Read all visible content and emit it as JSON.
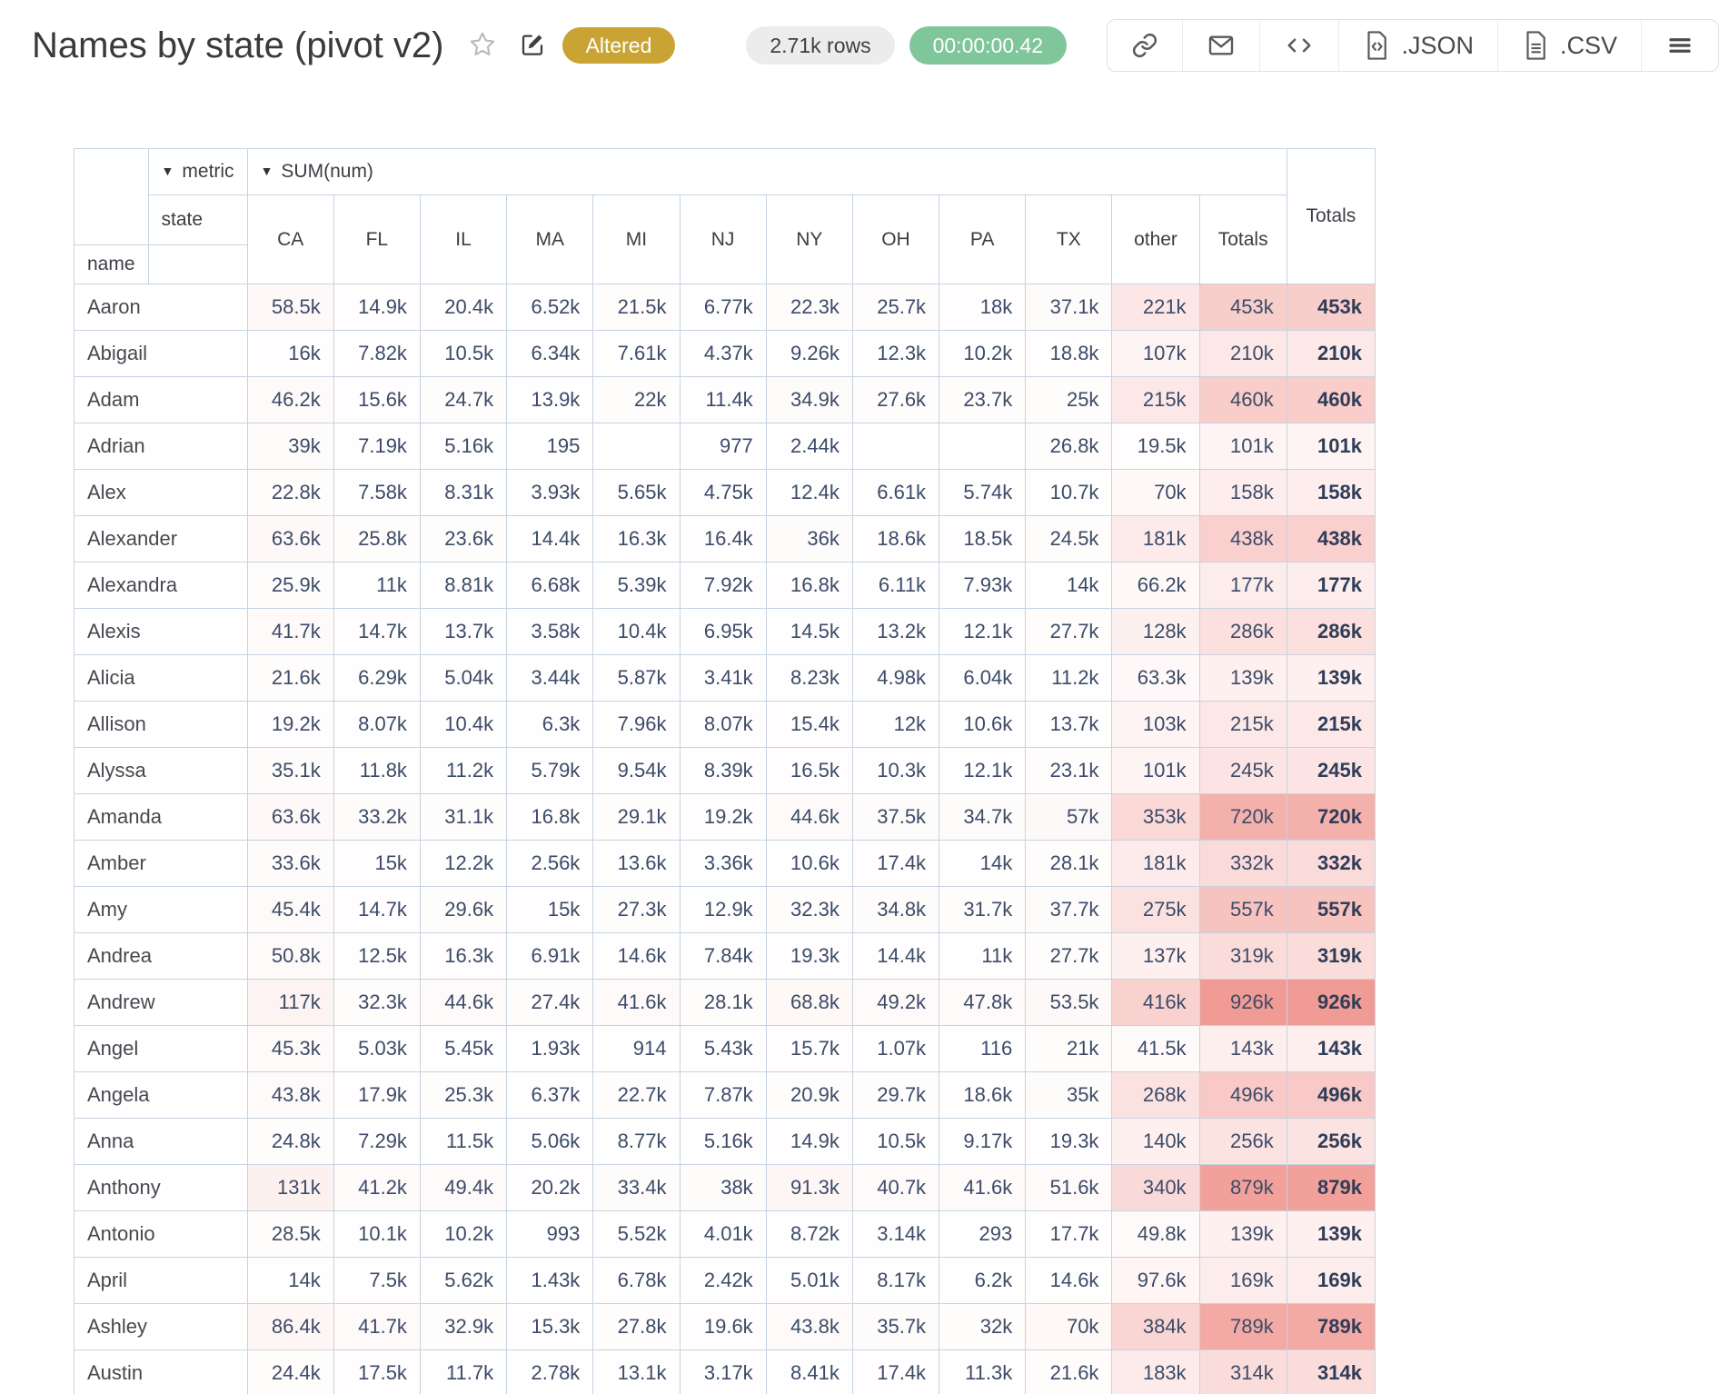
{
  "toolbar": {
    "title": "Names by state (pivot v2)",
    "altered_badge": {
      "label": "Altered",
      "bg": "#c9a434"
    },
    "rows_badge": {
      "label": "2.71k rows",
      "bg": "#ececec"
    },
    "timer_badge": {
      "label": "00:00:00.42",
      "bg": "#80c69b"
    },
    "json_button_label": ".JSON",
    "csv_button_label": ".CSV"
  },
  "pivot": {
    "dropdown_arrow": "▼",
    "metric_label": "metric",
    "sum_label": "SUM(num)",
    "state_label": "state",
    "name_label": "name",
    "inner_totals_label": "Totals",
    "grand_totals_label": "Totals",
    "columns": [
      "CA",
      "FL",
      "IL",
      "MA",
      "MI",
      "NJ",
      "NY",
      "OH",
      "PA",
      "TX",
      "other",
      "Totals"
    ],
    "rows": [
      {
        "name": "Aaron",
        "values": [
          "58.5k",
          "14.9k",
          "20.4k",
          "6.52k",
          "21.5k",
          "6.77k",
          "22.3k",
          "25.7k",
          "18k",
          "37.1k",
          "221k",
          "453k"
        ],
        "total": "453k"
      },
      {
        "name": "Abigail",
        "values": [
          "16k",
          "7.82k",
          "10.5k",
          "6.34k",
          "7.61k",
          "4.37k",
          "9.26k",
          "12.3k",
          "10.2k",
          "18.8k",
          "107k",
          "210k"
        ],
        "total": "210k"
      },
      {
        "name": "Adam",
        "values": [
          "46.2k",
          "15.6k",
          "24.7k",
          "13.9k",
          "22k",
          "11.4k",
          "34.9k",
          "27.6k",
          "23.7k",
          "25k",
          "215k",
          "460k"
        ],
        "total": "460k"
      },
      {
        "name": "Adrian",
        "values": [
          "39k",
          "7.19k",
          "5.16k",
          "195",
          "",
          "977",
          "2.44k",
          "",
          "",
          "26.8k",
          "19.5k",
          "101k"
        ],
        "total": "101k"
      },
      {
        "name": "Alex",
        "values": [
          "22.8k",
          "7.58k",
          "8.31k",
          "3.93k",
          "5.65k",
          "4.75k",
          "12.4k",
          "6.61k",
          "5.74k",
          "10.7k",
          "70k",
          "158k"
        ],
        "total": "158k"
      },
      {
        "name": "Alexander",
        "values": [
          "63.6k",
          "25.8k",
          "23.6k",
          "14.4k",
          "16.3k",
          "16.4k",
          "36k",
          "18.6k",
          "18.5k",
          "24.5k",
          "181k",
          "438k"
        ],
        "total": "438k"
      },
      {
        "name": "Alexandra",
        "values": [
          "25.9k",
          "11k",
          "8.81k",
          "6.68k",
          "5.39k",
          "7.92k",
          "16.8k",
          "6.11k",
          "7.93k",
          "14k",
          "66.2k",
          "177k"
        ],
        "total": "177k"
      },
      {
        "name": "Alexis",
        "values": [
          "41.7k",
          "14.7k",
          "13.7k",
          "3.58k",
          "10.4k",
          "6.95k",
          "14.5k",
          "13.2k",
          "12.1k",
          "27.7k",
          "128k",
          "286k"
        ],
        "total": "286k"
      },
      {
        "name": "Alicia",
        "values": [
          "21.6k",
          "6.29k",
          "5.04k",
          "3.44k",
          "5.87k",
          "3.41k",
          "8.23k",
          "4.98k",
          "6.04k",
          "11.2k",
          "63.3k",
          "139k"
        ],
        "total": "139k"
      },
      {
        "name": "Allison",
        "values": [
          "19.2k",
          "8.07k",
          "10.4k",
          "6.3k",
          "7.96k",
          "8.07k",
          "15.4k",
          "12k",
          "10.6k",
          "13.7k",
          "103k",
          "215k"
        ],
        "total": "215k"
      },
      {
        "name": "Alyssa",
        "values": [
          "35.1k",
          "11.8k",
          "11.2k",
          "5.79k",
          "9.54k",
          "8.39k",
          "16.5k",
          "10.3k",
          "12.1k",
          "23.1k",
          "101k",
          "245k"
        ],
        "total": "245k"
      },
      {
        "name": "Amanda",
        "values": [
          "63.6k",
          "33.2k",
          "31.1k",
          "16.8k",
          "29.1k",
          "19.2k",
          "44.6k",
          "37.5k",
          "34.7k",
          "57k",
          "353k",
          "720k"
        ],
        "total": "720k"
      },
      {
        "name": "Amber",
        "values": [
          "33.6k",
          "15k",
          "12.2k",
          "2.56k",
          "13.6k",
          "3.36k",
          "10.6k",
          "17.4k",
          "14k",
          "28.1k",
          "181k",
          "332k"
        ],
        "total": "332k"
      },
      {
        "name": "Amy",
        "values": [
          "45.4k",
          "14.7k",
          "29.6k",
          "15k",
          "27.3k",
          "12.9k",
          "32.3k",
          "34.8k",
          "31.7k",
          "37.7k",
          "275k",
          "557k"
        ],
        "total": "557k"
      },
      {
        "name": "Andrea",
        "values": [
          "50.8k",
          "12.5k",
          "16.3k",
          "6.91k",
          "14.6k",
          "7.84k",
          "19.3k",
          "14.4k",
          "11k",
          "27.7k",
          "137k",
          "319k"
        ],
        "total": "319k"
      },
      {
        "name": "Andrew",
        "values": [
          "117k",
          "32.3k",
          "44.6k",
          "27.4k",
          "41.6k",
          "28.1k",
          "68.8k",
          "49.2k",
          "47.8k",
          "53.5k",
          "416k",
          "926k"
        ],
        "total": "926k"
      },
      {
        "name": "Angel",
        "values": [
          "45.3k",
          "5.03k",
          "5.45k",
          "1.93k",
          "914",
          "5.43k",
          "15.7k",
          "1.07k",
          "116",
          "21k",
          "41.5k",
          "143k"
        ],
        "total": "143k"
      },
      {
        "name": "Angela",
        "values": [
          "43.8k",
          "17.9k",
          "25.3k",
          "6.37k",
          "22.7k",
          "7.87k",
          "20.9k",
          "29.7k",
          "18.6k",
          "35k",
          "268k",
          "496k"
        ],
        "total": "496k"
      },
      {
        "name": "Anna",
        "values": [
          "24.8k",
          "7.29k",
          "11.5k",
          "5.06k",
          "8.77k",
          "5.16k",
          "14.9k",
          "10.5k",
          "9.17k",
          "19.3k",
          "140k",
          "256k"
        ],
        "total": "256k"
      },
      {
        "name": "Anthony",
        "values": [
          "131k",
          "41.2k",
          "49.4k",
          "20.2k",
          "33.4k",
          "38k",
          "91.3k",
          "40.7k",
          "41.6k",
          "51.6k",
          "340k",
          "879k"
        ],
        "total": "879k"
      },
      {
        "name": "Antonio",
        "values": [
          "28.5k",
          "10.1k",
          "10.2k",
          "993",
          "5.52k",
          "4.01k",
          "8.72k",
          "3.14k",
          "293",
          "17.7k",
          "49.8k",
          "139k"
        ],
        "total": "139k"
      },
      {
        "name": "April",
        "values": [
          "14k",
          "7.5k",
          "5.62k",
          "1.43k",
          "6.78k",
          "2.42k",
          "5.01k",
          "8.17k",
          "6.2k",
          "14.6k",
          "97.6k",
          "169k"
        ],
        "total": "169k"
      },
      {
        "name": "Ashley",
        "values": [
          "86.4k",
          "41.7k",
          "32.9k",
          "15.3k",
          "27.8k",
          "19.6k",
          "43.8k",
          "35.7k",
          "32k",
          "70k",
          "384k",
          "789k"
        ],
        "total": "789k"
      },
      {
        "name": "Austin",
        "values": [
          "24.4k",
          "17.5k",
          "11.7k",
          "2.78k",
          "13.1k",
          "3.17k",
          "8.41k",
          "17.4k",
          "11.3k",
          "21.6k",
          "183k",
          "314k"
        ],
        "total": "314k"
      }
    ],
    "heatmap": {
      "max_value": 926000,
      "rgb": [
        232,
        88,
        78
      ],
      "max_alpha": 0.6
    }
  }
}
